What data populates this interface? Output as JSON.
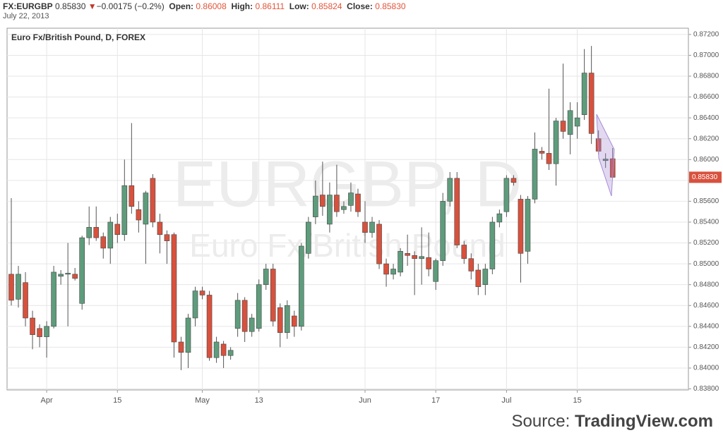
{
  "header": {
    "symbol": "FX:EURGBP",
    "last": "0.85830",
    "arrow": "▼",
    "change": "−0.00175 (−0.2%)",
    "open_label": "Open:",
    "open": "0.86008",
    "high_label": "High:",
    "high": "0.86111",
    "low_label": "Low:",
    "low": "0.85824",
    "close_label": "Close:",
    "close": "0.85830",
    "date": "July 22, 2013"
  },
  "chart_data": {
    "type": "candlestick",
    "title": "Euro Fx/British Pound, D, FOREX",
    "watermark": "EURGBP, D",
    "watermark_subtitle": "Euro Fx/British Pound",
    "up_color": "#5e9c7c",
    "down_color": "#d8513d",
    "grid": true,
    "x": [
      "2013-03-25",
      "2013-03-26",
      "2013-03-27",
      "2013-03-28",
      "2013-03-29",
      "2013-04-01",
      "2013-04-02",
      "2013-04-03",
      "2013-04-04",
      "2013-04-05",
      "2013-04-08",
      "2013-04-09",
      "2013-04-10",
      "2013-04-11",
      "2013-04-12",
      "2013-04-15",
      "2013-04-16",
      "2013-04-17",
      "2013-04-18",
      "2013-04-19",
      "2013-04-22",
      "2013-04-23",
      "2013-04-24",
      "2013-04-25",
      "2013-04-26",
      "2013-04-29",
      "2013-04-30",
      "2013-05-01",
      "2013-05-02",
      "2013-05-03",
      "2013-05-06",
      "2013-05-07",
      "2013-05-08",
      "2013-05-09",
      "2013-05-10",
      "2013-05-13",
      "2013-05-14",
      "2013-05-15",
      "2013-05-16",
      "2013-05-17",
      "2013-05-20",
      "2013-05-21",
      "2013-05-22",
      "2013-05-23",
      "2013-05-24",
      "2013-05-27",
      "2013-05-28",
      "2013-05-29",
      "2013-05-30",
      "2013-05-31",
      "2013-06-03",
      "2013-06-04",
      "2013-06-05",
      "2013-06-06",
      "2013-06-07",
      "2013-06-10",
      "2013-06-11",
      "2013-06-12",
      "2013-06-13",
      "2013-06-14",
      "2013-06-17",
      "2013-06-18",
      "2013-06-19",
      "2013-06-20",
      "2013-06-21",
      "2013-06-24",
      "2013-06-25",
      "2013-06-26",
      "2013-06-27",
      "2013-06-28",
      "2013-07-01",
      "2013-07-02",
      "2013-07-03",
      "2013-07-04",
      "2013-07-05",
      "2013-07-08",
      "2013-07-09",
      "2013-07-10",
      "2013-07-11",
      "2013-07-12",
      "2013-07-15",
      "2013-07-16",
      "2013-07-17",
      "2013-07-18",
      "2013-07-19",
      "2013-07-22"
    ],
    "open": [
      0.849,
      0.8466,
      0.8482,
      0.8448,
      0.8438,
      0.843,
      0.844,
      0.8488,
      0.849,
      0.849,
      0.8462,
      0.8525,
      0.8535,
      0.8526,
      0.8515,
      0.8538,
      0.8528,
      0.8575,
      0.8552,
      0.8538,
      0.8582,
      0.854,
      0.8528,
      0.8528,
      0.8425,
      0.8415,
      0.8448,
      0.8474,
      0.847,
      0.841,
      0.8423,
      0.8412,
      0.8438,
      0.8465,
      0.8435,
      0.8438,
      0.848,
      0.8495,
      0.8458,
      0.8434,
      0.845,
      0.844,
      0.851,
      0.8545,
      0.8566,
      0.8538,
      0.8566,
      0.8552,
      0.8556,
      0.8567,
      0.854,
      0.853,
      0.8538,
      0.85,
      0.849,
      0.8492,
      0.851,
      0.8508,
      0.8505,
      0.8506,
      0.8483,
      0.8503,
      0.856,
      0.8582,
      0.8518,
      0.8505,
      0.8494,
      0.848,
      0.8495,
      0.854,
      0.855,
      0.8582,
      0.8562,
      0.8512,
      0.8562,
      0.8608,
      0.8606,
      0.8596,
      0.8637,
      0.8624,
      0.8632,
      0.8643,
      0.8683,
      0.862,
      0.8599,
      0.86008
    ],
    "high": [
      0.8563,
      0.8498,
      0.8492,
      0.8455,
      0.8442,
      0.8445,
      0.8498,
      0.8494,
      0.852,
      0.8496,
      0.8527,
      0.8555,
      0.8555,
      0.853,
      0.8545,
      0.8548,
      0.86,
      0.8635,
      0.856,
      0.857,
      0.8586,
      0.8548,
      0.8532,
      0.853,
      0.843,
      0.8452,
      0.8478,
      0.8478,
      0.8474,
      0.843,
      0.8426,
      0.842,
      0.8472,
      0.8468,
      0.8452,
      0.8485,
      0.85,
      0.85,
      0.8462,
      0.8465,
      0.8455,
      0.852,
      0.8545,
      0.858,
      0.8598,
      0.8578,
      0.8595,
      0.856,
      0.8578,
      0.8572,
      0.856,
      0.8545,
      0.8542,
      0.8505,
      0.85,
      0.8515,
      0.8528,
      0.8512,
      0.8535,
      0.853,
      0.8505,
      0.8568,
      0.8588,
      0.8588,
      0.8522,
      0.851,
      0.85,
      0.85,
      0.8545,
      0.8552,
      0.8585,
      0.8585,
      0.8566,
      0.8565,
      0.8626,
      0.8612,
      0.8668,
      0.864,
      0.8692,
      0.8655,
      0.8655,
      0.8706,
      0.8709,
      0.8628,
      0.8606,
      0.86111
    ],
    "low": [
      0.846,
      0.8458,
      0.844,
      0.8418,
      0.842,
      0.841,
      0.8438,
      0.848,
      0.844,
      0.8484,
      0.8456,
      0.8518,
      0.8522,
      0.8505,
      0.85,
      0.852,
      0.8522,
      0.8548,
      0.853,
      0.85,
      0.8535,
      0.851,
      0.85,
      0.841,
      0.8398,
      0.84,
      0.844,
      0.8466,
      0.8407,
      0.8405,
      0.84,
      0.8408,
      0.843,
      0.8425,
      0.843,
      0.8435,
      0.8475,
      0.844,
      0.842,
      0.8428,
      0.843,
      0.8436,
      0.8505,
      0.8538,
      0.8546,
      0.853,
      0.8545,
      0.8548,
      0.855,
      0.8545,
      0.852,
      0.8525,
      0.8495,
      0.8478,
      0.8485,
      0.8488,
      0.8498,
      0.847,
      0.848,
      0.8488,
      0.8475,
      0.8498,
      0.8555,
      0.8515,
      0.85,
      0.8485,
      0.847,
      0.847,
      0.849,
      0.8535,
      0.8545,
      0.8575,
      0.8482,
      0.85,
      0.8558,
      0.86,
      0.859,
      0.8575,
      0.862,
      0.8605,
      0.862,
      0.8638,
      0.8615,
      0.8605,
      0.8592,
      0.85824
    ],
    "close": [
      0.8465,
      0.849,
      0.8448,
      0.8432,
      0.843,
      0.844,
      0.8492,
      0.849,
      0.8491,
      0.8486,
      0.8525,
      0.8535,
      0.8525,
      0.8515,
      0.854,
      0.8528,
      0.8575,
      0.8555,
      0.8542,
      0.8568,
      0.854,
      0.8528,
      0.8522,
      0.8425,
      0.8415,
      0.8448,
      0.8474,
      0.847,
      0.841,
      0.8425,
      0.8412,
      0.8417,
      0.8465,
      0.8435,
      0.8448,
      0.848,
      0.8495,
      0.8445,
      0.8434,
      0.846,
      0.844,
      0.8517,
      0.854,
      0.8565,
      0.8555,
      0.8566,
      0.855,
      0.8555,
      0.8568,
      0.855,
      0.853,
      0.854,
      0.85,
      0.849,
      0.8495,
      0.8512,
      0.8508,
      0.8505,
      0.8507,
      0.8495,
      0.8503,
      0.856,
      0.8582,
      0.8518,
      0.8505,
      0.8493,
      0.8478,
      0.8495,
      0.854,
      0.8548,
      0.8582,
      0.8578,
      0.851,
      0.8562,
      0.861,
      0.8606,
      0.8596,
      0.8637,
      0.8627,
      0.8647,
      0.864,
      0.8683,
      0.8625,
      0.8608,
      0.86005,
      0.8583
    ],
    "ylim": [
      0.8379,
      0.8726
    ],
    "yticks": [
      {
        "value": 0.838,
        "label": "0.83800"
      },
      {
        "value": 0.84,
        "label": "0.84000"
      },
      {
        "value": 0.842,
        "label": "0.84200"
      },
      {
        "value": 0.844,
        "label": "0.84400"
      },
      {
        "value": 0.846,
        "label": "0.84600"
      },
      {
        "value": 0.848,
        "label": "0.84800"
      },
      {
        "value": 0.85,
        "label": "0.85000"
      },
      {
        "value": 0.852,
        "label": "0.85200"
      },
      {
        "value": 0.854,
        "label": "0.85400"
      },
      {
        "value": 0.856,
        "label": "0.85600"
      },
      {
        "value": 0.858,
        "label": "0.85800"
      },
      {
        "value": 0.86,
        "label": "0.86000"
      },
      {
        "value": 0.862,
        "label": "0.86200"
      },
      {
        "value": 0.864,
        "label": "0.86400"
      },
      {
        "value": 0.866,
        "label": "0.86600"
      },
      {
        "value": 0.868,
        "label": "0.86800"
      },
      {
        "value": 0.87,
        "label": "0.87000"
      },
      {
        "value": 0.872,
        "label": "0.87200"
      }
    ],
    "xticks": [
      {
        "value": "2013-04-01",
        "label": "Apr"
      },
      {
        "value": "2013-04-15",
        "label": "15"
      },
      {
        "value": "2013-05-01",
        "label": "May"
      },
      {
        "value": "2013-05-13",
        "label": "13"
      },
      {
        "value": "2013-06-03",
        "label": "Jun"
      },
      {
        "value": "2013-06-17",
        "label": "17"
      },
      {
        "value": "2013-07-01",
        "label": "Jul"
      },
      {
        "value": "2013-07-15",
        "label": "15"
      }
    ],
    "last_price": {
      "value": 0.8583,
      "label": "0.85830"
    }
  },
  "source": {
    "prefix": "Source:",
    "site": "TradingView.com"
  }
}
